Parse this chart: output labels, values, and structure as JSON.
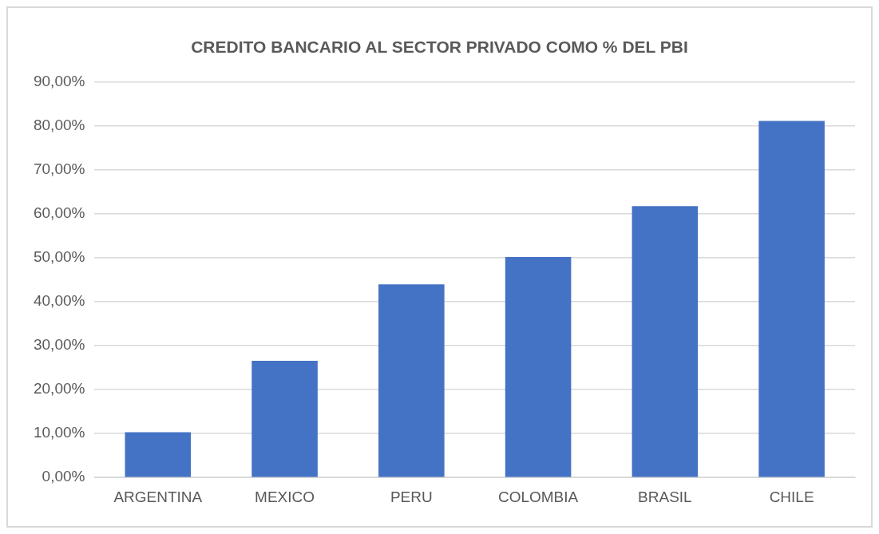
{
  "chart_data": {
    "type": "bar",
    "title": "CREDITO BANCARIO AL SECTOR PRIVADO COMO % DEL PBI",
    "categories": [
      "ARGENTINA",
      "MEXICO",
      "PERU",
      "COLOMBIA",
      "BRASIL",
      "CHILE"
    ],
    "values": [
      10.3,
      26.6,
      44.0,
      50.2,
      61.8,
      81.2
    ],
    "color": "#4472c4",
    "ylim": [
      0,
      90
    ],
    "yticks": [
      {
        "value": 0,
        "label": "0,00%"
      },
      {
        "value": 10,
        "label": "10,00%"
      },
      {
        "value": 20,
        "label": "20,00%"
      },
      {
        "value": 30,
        "label": "30,00%"
      },
      {
        "value": 40,
        "label": "40,00%"
      },
      {
        "value": 50,
        "label": "50,00%"
      },
      {
        "value": 60,
        "label": "60,00%"
      },
      {
        "value": 70,
        "label": "70,00%"
      },
      {
        "value": 80,
        "label": "80,00%"
      },
      {
        "value": 90,
        "label": "90,00%"
      }
    ],
    "grid": "y"
  }
}
